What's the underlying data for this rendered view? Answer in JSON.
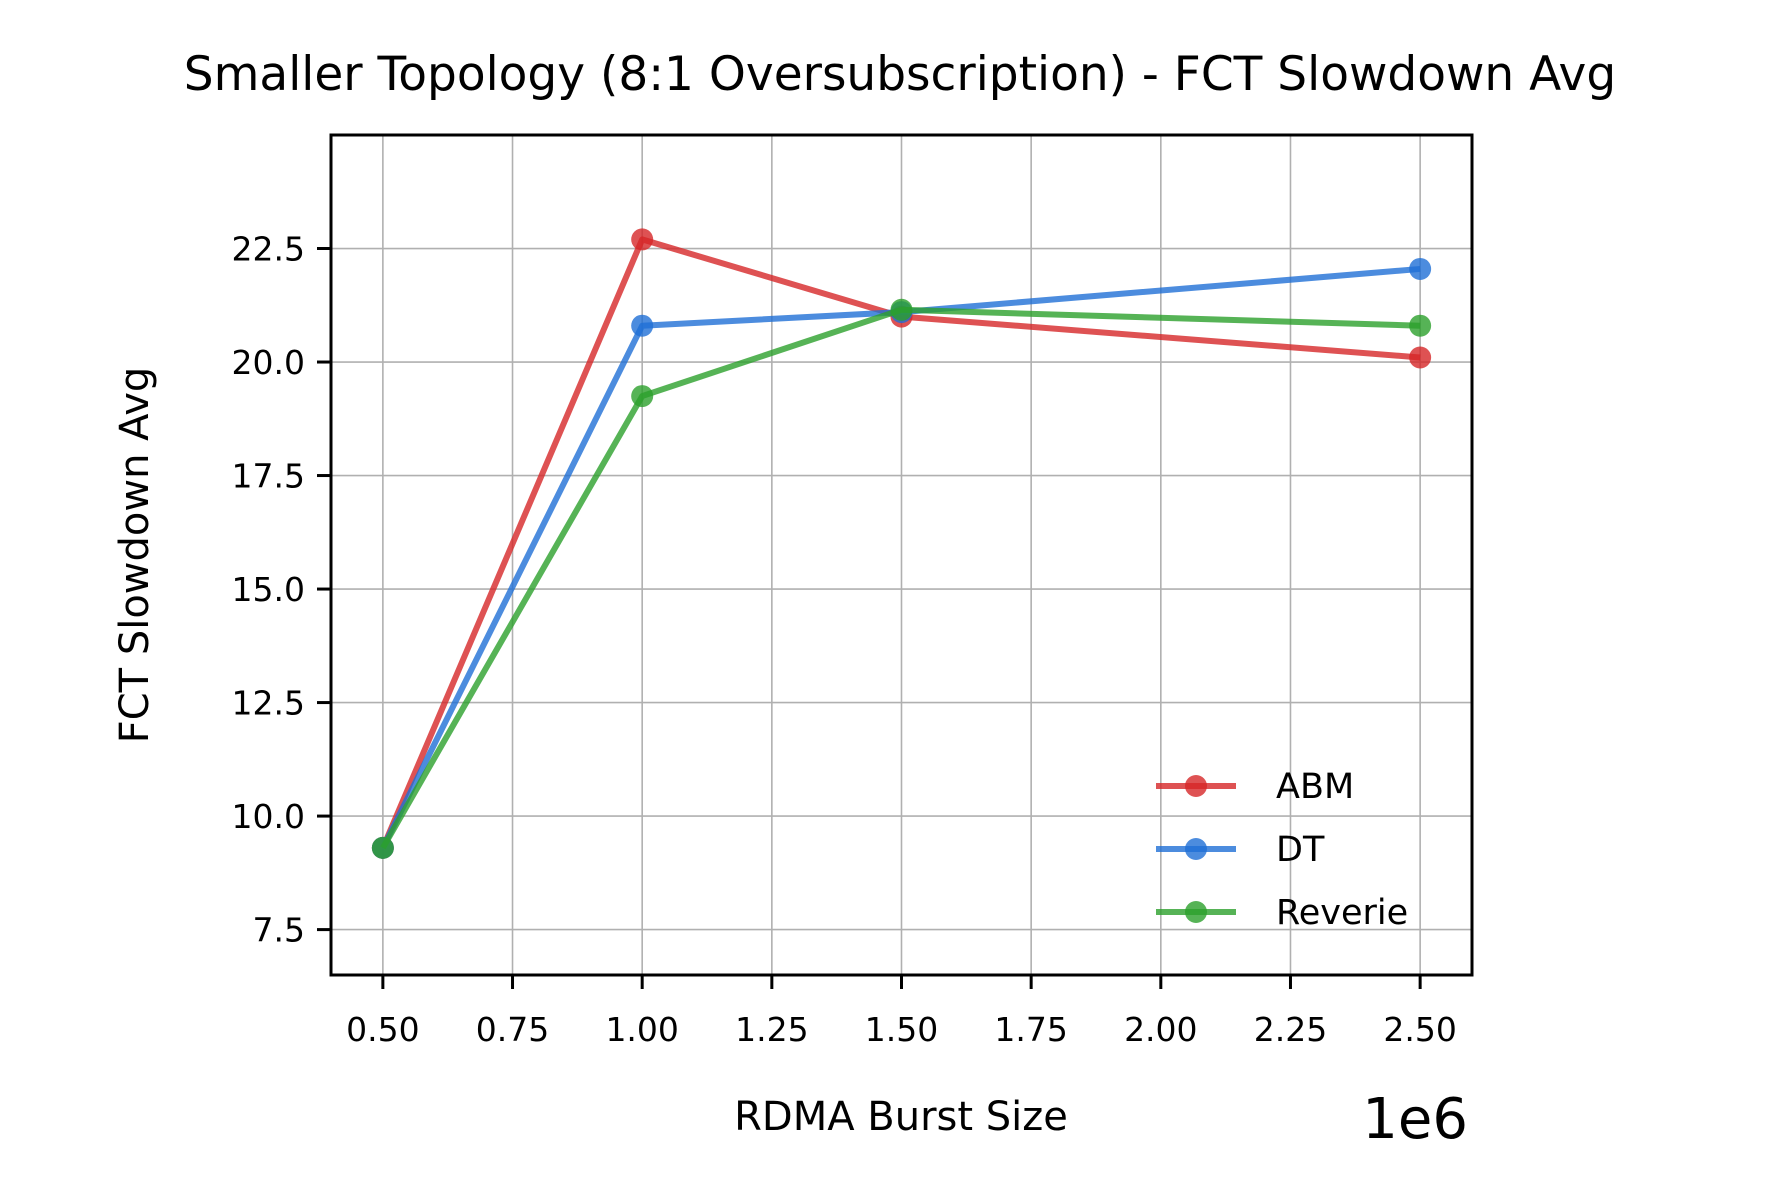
{
  "chart_data": {
    "type": "line",
    "title": "Smaller Topology (8:1 Oversubscription) - FCT Slowdown Avg",
    "xlabel": "RDMA Burst Size",
    "ylabel": "FCT Slowdown Avg",
    "x_offset_label": "1e6",
    "x": [
      0.5,
      1.0,
      1.5,
      2.5
    ],
    "xlim": [
      0.4,
      2.6
    ],
    "ylim": [
      6.5,
      25.0
    ],
    "xticks": [
      0.5,
      0.75,
      1.0,
      1.25,
      1.5,
      1.75,
      2.0,
      2.25,
      2.5
    ],
    "xtick_labels": [
      "0.50",
      "0.75",
      "1.00",
      "1.25",
      "1.50",
      "1.75",
      "2.00",
      "2.25",
      "2.50"
    ],
    "yticks": [
      7.5,
      10.0,
      12.5,
      15.0,
      17.5,
      20.0,
      22.5
    ],
    "ytick_labels": [
      "7.5",
      "10.0",
      "12.5",
      "15.0",
      "17.5",
      "20.0",
      "22.5"
    ],
    "grid": true,
    "legend_position": "lower-right",
    "series": [
      {
        "name": "ABM",
        "color": "#d62728",
        "values": [
          9.3,
          22.7,
          21.0,
          20.1
        ]
      },
      {
        "name": "DT",
        "color": "#1f6fd6",
        "values": [
          9.3,
          20.8,
          21.1,
          22.05
        ]
      },
      {
        "name": "Reverie",
        "color": "#2ca02c",
        "values": [
          9.3,
          19.25,
          21.15,
          20.8
        ]
      }
    ]
  }
}
